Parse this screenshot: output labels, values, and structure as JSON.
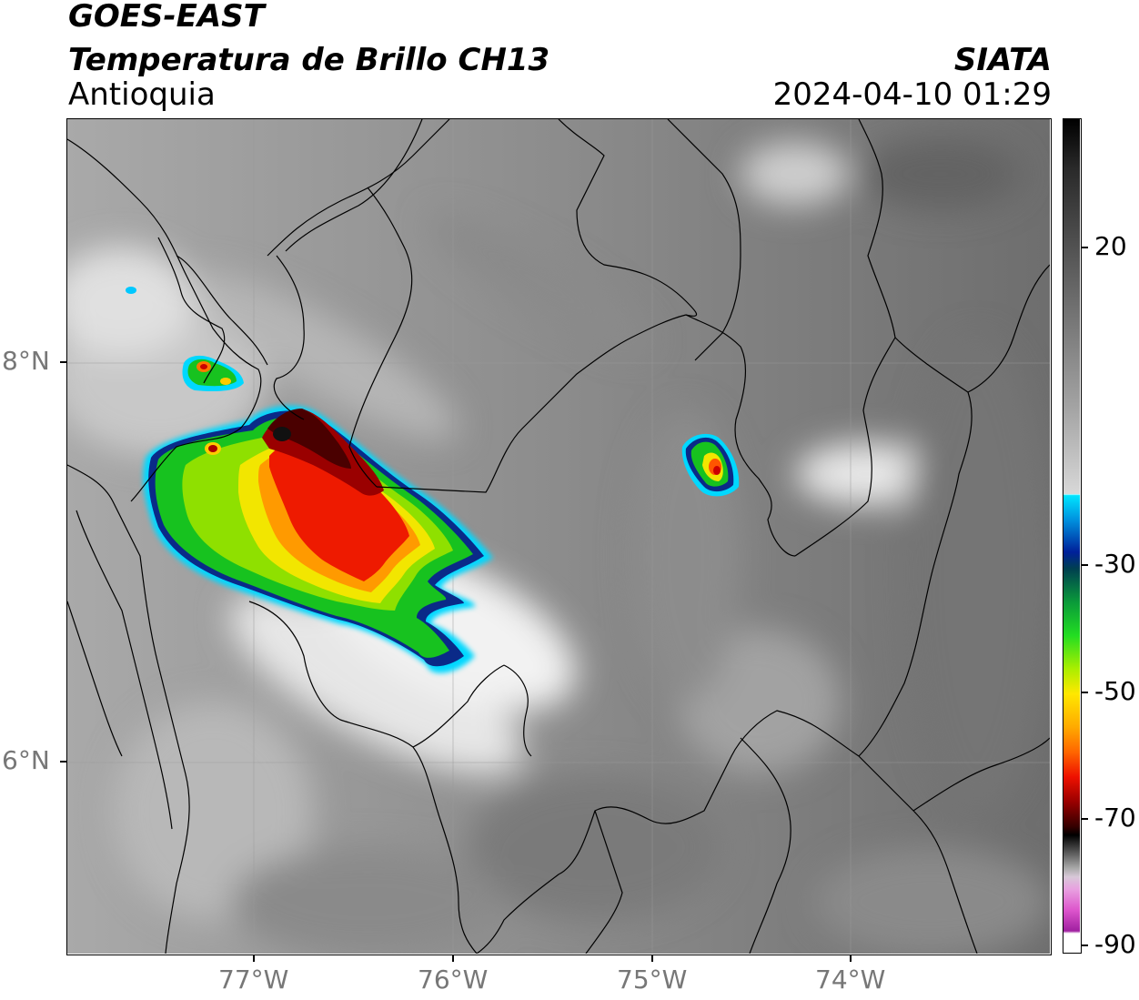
{
  "header": {
    "satellite": "GOES-EAST",
    "product": "Temperatura de Brillo CH13",
    "region": "Antioquia",
    "agency": "SIATA",
    "datetime": "2024-04-10 01:29"
  },
  "axes": {
    "longitude_ticks": [
      "77°W",
      "76°W",
      "75°W",
      "74°W"
    ],
    "latitude_ticks": [
      "8°N",
      "6°N"
    ]
  },
  "colorbar": {
    "ticks": [
      "20",
      "-30",
      "-50",
      "-70",
      "-90"
    ],
    "colors": {
      "warm_gray": "#555555",
      "cold_cyan": "#00e5ff",
      "blue": "#003399",
      "green": "#11cc22",
      "yellow": "#e8ee00",
      "orange": "#ff9900",
      "red": "#ee1100",
      "dark_red": "#550000",
      "magenta": "#dd55cc"
    }
  }
}
